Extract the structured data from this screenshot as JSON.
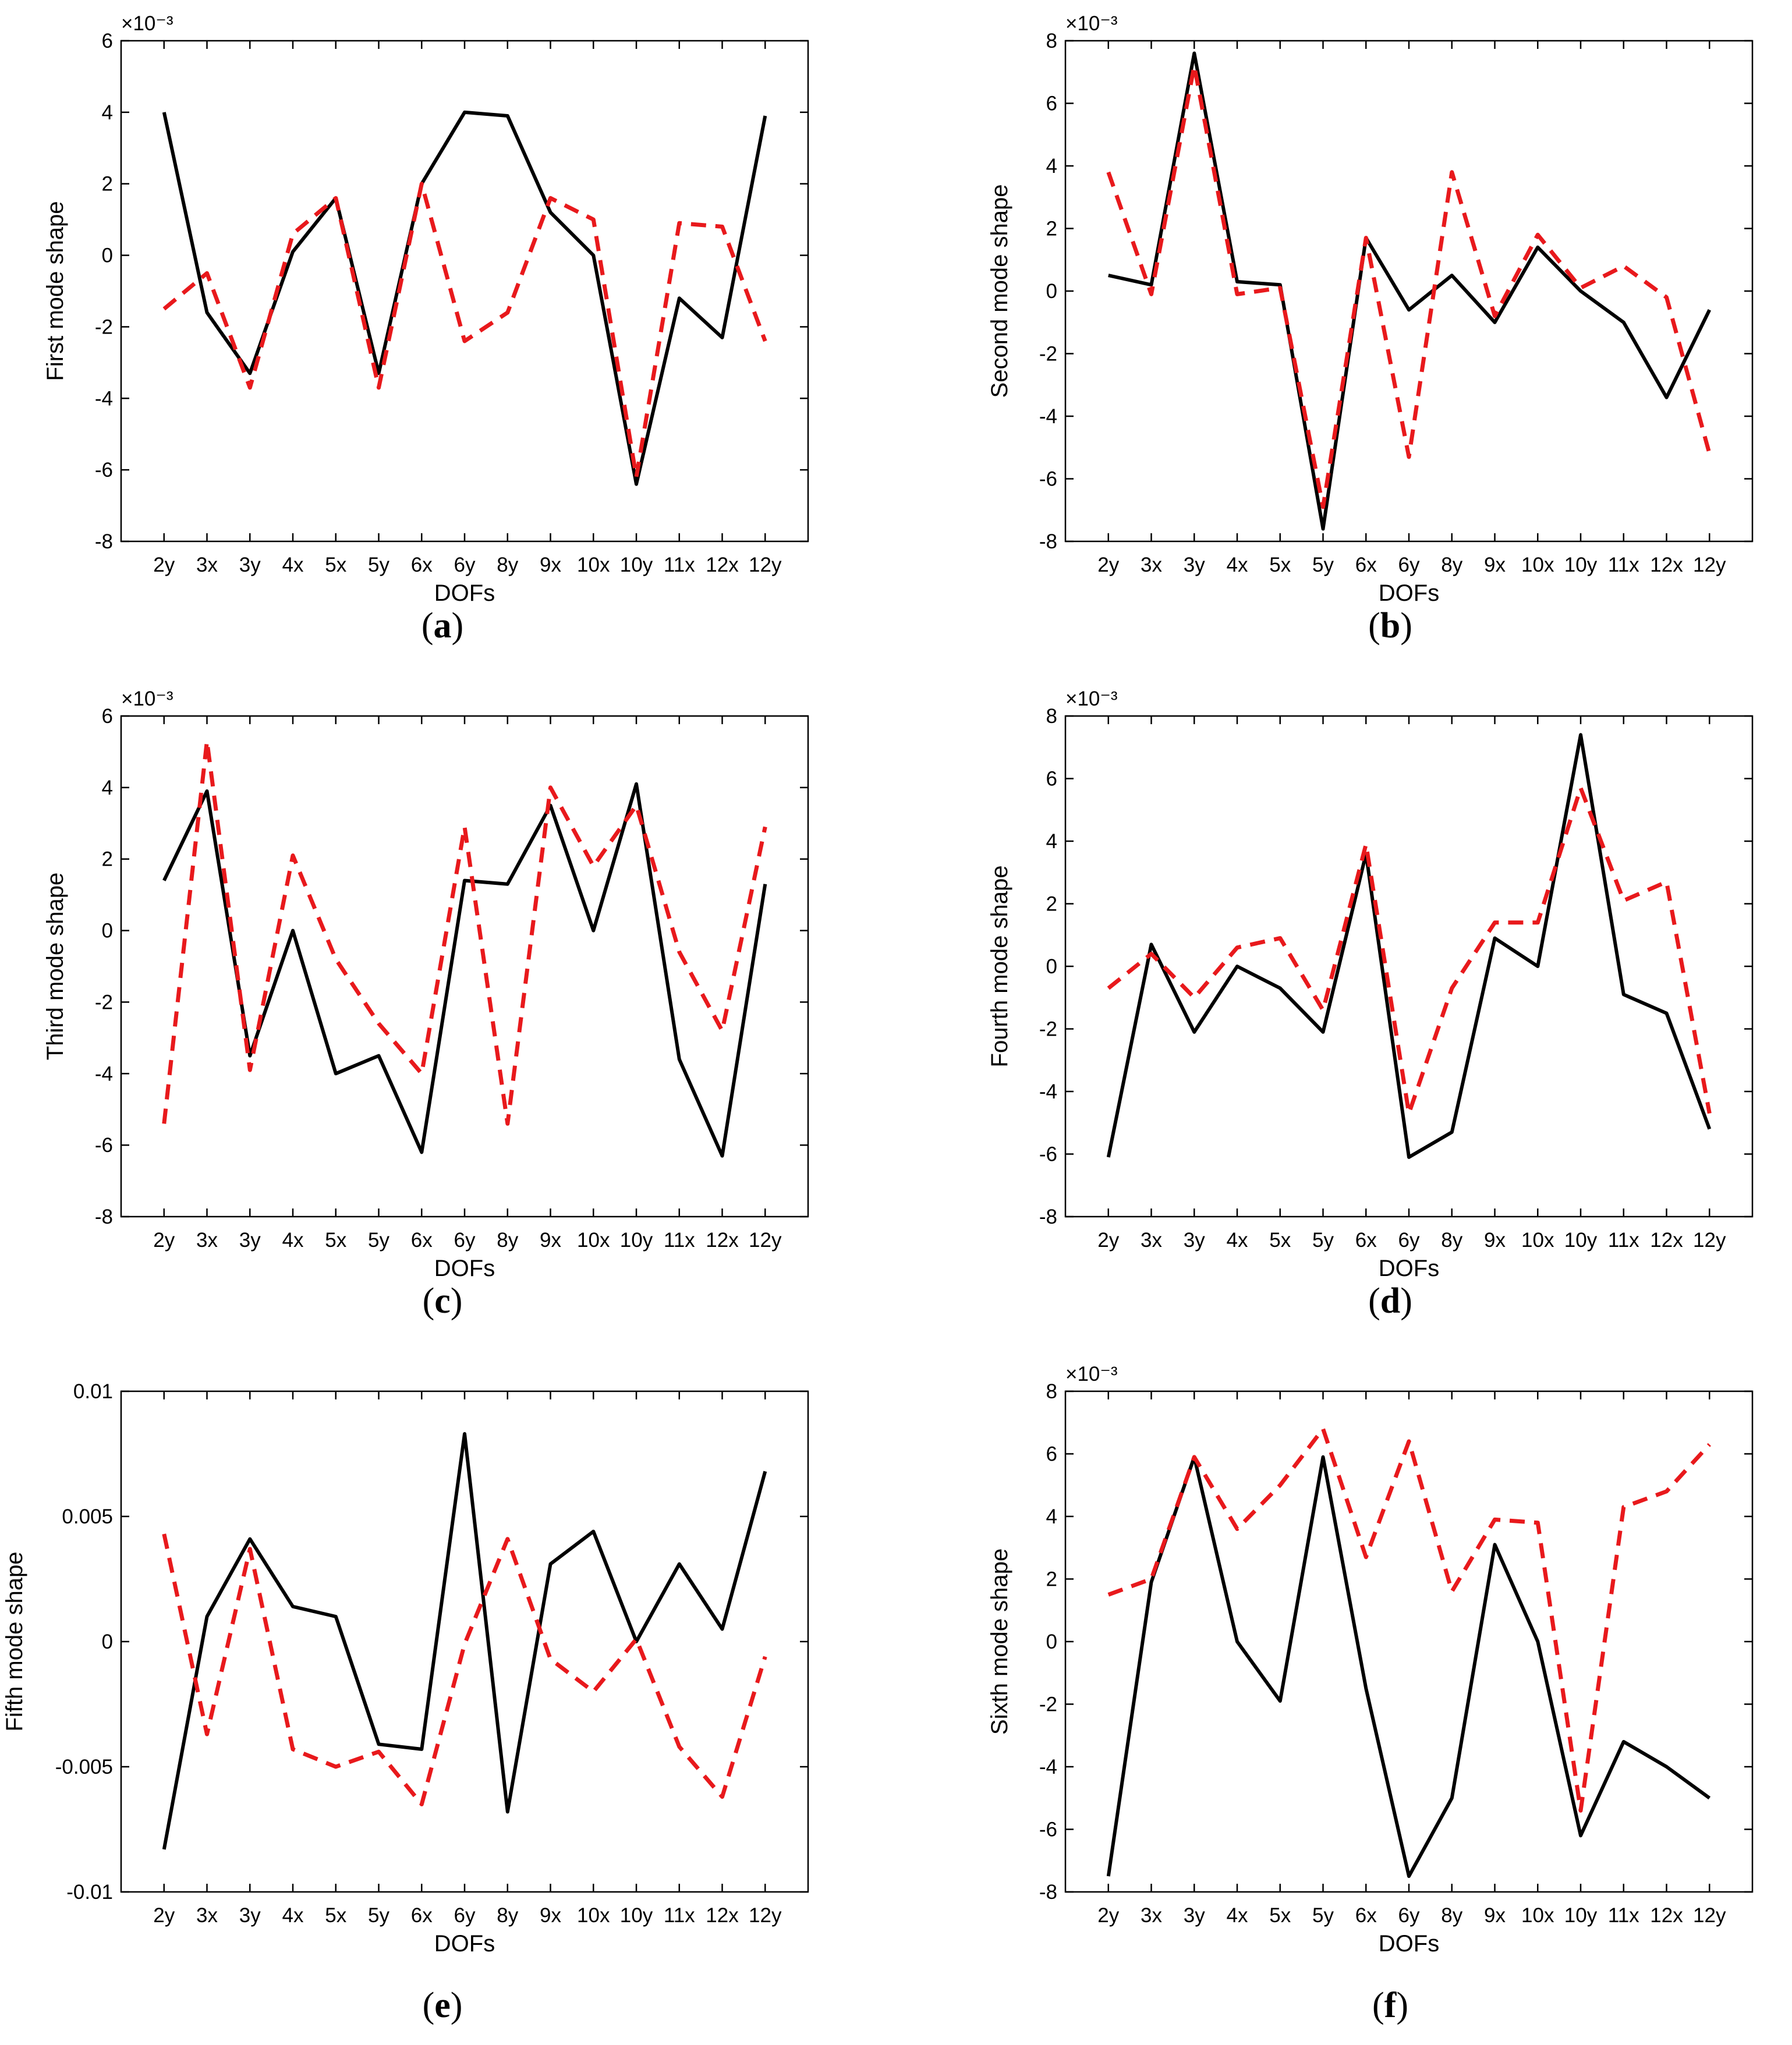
{
  "chart_data": [
    {
      "panel": "a",
      "type": "line",
      "ylabel": "First mode shape",
      "xlabel": "DOFs",
      "exponent_label": "×10⁻³",
      "ylim": [
        -8,
        6
      ],
      "yticks": [
        -8,
        -6,
        -4,
        -2,
        0,
        2,
        4,
        6
      ],
      "ytick_labels": [
        "-8",
        "-6",
        "-4",
        "-2",
        "0",
        "2",
        "4",
        "6"
      ],
      "categories": [
        "2y",
        "3x",
        "3y",
        "4x",
        "5x",
        "5y",
        "6x",
        "6y",
        "8y",
        "9x",
        "10x",
        "10y",
        "11x",
        "12x",
        "12y"
      ],
      "series": [
        {
          "name": "solid",
          "color": "#000000",
          "dashed": false,
          "values": [
            4.0,
            -1.6,
            -3.3,
            0.1,
            1.6,
            -3.3,
            2.0,
            4.0,
            3.9,
            1.2,
            0.0,
            -6.4,
            -1.2,
            -2.3,
            3.9
          ]
        },
        {
          "name": "dashed",
          "color": "#e8191c",
          "dashed": true,
          "values": [
            -1.5,
            -0.5,
            -3.7,
            0.6,
            1.6,
            -3.7,
            2.0,
            -2.4,
            -1.6,
            1.6,
            1.0,
            -6.2,
            0.9,
            0.8,
            -2.4
          ]
        }
      ],
      "caption_letter": "a"
    },
    {
      "panel": "b",
      "type": "line",
      "ylabel": "Second mode shape",
      "xlabel": "DOFs",
      "exponent_label": "×10⁻³",
      "ylim": [
        -8,
        8
      ],
      "yticks": [
        -8,
        -6,
        -4,
        -2,
        0,
        2,
        4,
        6,
        8
      ],
      "ytick_labels": [
        "-8",
        "-6",
        "-4",
        "-2",
        "0",
        "2",
        "4",
        "6",
        "8"
      ],
      "categories": [
        "2y",
        "3x",
        "3y",
        "4x",
        "5x",
        "5y",
        "6x",
        "6y",
        "8y",
        "9x",
        "10x",
        "10y",
        "11x",
        "12x",
        "12y"
      ],
      "series": [
        {
          "name": "solid",
          "color": "#000000",
          "dashed": false,
          "values": [
            0.5,
            0.2,
            7.6,
            0.3,
            0.2,
            -7.6,
            1.7,
            -0.6,
            0.5,
            -1.0,
            1.4,
            0.0,
            -1.0,
            -3.4,
            -0.6
          ]
        },
        {
          "name": "dashed",
          "color": "#e8191c",
          "dashed": true,
          "values": [
            3.8,
            -0.1,
            7.2,
            -0.1,
            0.1,
            -6.9,
            1.7,
            -5.3,
            3.8,
            -0.8,
            1.8,
            0.1,
            0.8,
            -0.2,
            -5.2
          ]
        }
      ],
      "caption_letter": "b"
    },
    {
      "panel": "c",
      "type": "line",
      "ylabel": "Third mode shape",
      "xlabel": "DOFs",
      "exponent_label": "×10⁻³",
      "ylim": [
        -8,
        6
      ],
      "yticks": [
        -8,
        -6,
        -4,
        -2,
        0,
        2,
        4,
        6
      ],
      "ytick_labels": [
        "-8",
        "-6",
        "-4",
        "-2",
        "0",
        "2",
        "4",
        "6"
      ],
      "categories": [
        "2y",
        "3x",
        "3y",
        "4x",
        "5x",
        "5y",
        "6x",
        "6y",
        "8y",
        "9x",
        "10x",
        "10y",
        "11x",
        "12x",
        "12y"
      ],
      "series": [
        {
          "name": "solid",
          "color": "#000000",
          "dashed": false,
          "values": [
            1.4,
            3.9,
            -3.5,
            0.0,
            -4.0,
            -3.5,
            -6.2,
            1.4,
            1.3,
            3.5,
            0.0,
            4.1,
            -3.6,
            -6.3,
            1.3
          ]
        },
        {
          "name": "dashed",
          "color": "#e8191c",
          "dashed": true,
          "values": [
            -5.4,
            5.3,
            -3.9,
            2.1,
            -0.8,
            -2.6,
            -4.0,
            2.9,
            -5.4,
            4.0,
            1.8,
            3.5,
            -0.6,
            -2.8,
            2.9
          ]
        }
      ],
      "caption_letter": "c"
    },
    {
      "panel": "d",
      "type": "line",
      "ylabel": "Fourth mode shape",
      "xlabel": "DOFs",
      "exponent_label": "×10⁻³",
      "ylim": [
        -8,
        8
      ],
      "yticks": [
        -8,
        -6,
        -4,
        -2,
        0,
        2,
        4,
        6,
        8
      ],
      "ytick_labels": [
        "-8",
        "-6",
        "-4",
        "-2",
        "0",
        "2",
        "4",
        "6",
        "8"
      ],
      "categories": [
        "2y",
        "3x",
        "3y",
        "4x",
        "5x",
        "5y",
        "6x",
        "6y",
        "8y",
        "9x",
        "10x",
        "10y",
        "11x",
        "12x",
        "12y"
      ],
      "series": [
        {
          "name": "solid",
          "color": "#000000",
          "dashed": false,
          "values": [
            -6.1,
            0.7,
            -2.1,
            0.0,
            -0.7,
            -2.1,
            3.6,
            -6.1,
            -5.3,
            0.9,
            0.0,
            7.4,
            -0.9,
            -1.5,
            -5.2
          ]
        },
        {
          "name": "dashed",
          "color": "#e8191c",
          "dashed": true,
          "values": [
            -0.7,
            0.4,
            -1.0,
            0.6,
            0.9,
            -1.4,
            3.9,
            -4.7,
            -0.7,
            1.4,
            1.4,
            5.7,
            2.1,
            2.7,
            -4.7
          ]
        }
      ],
      "caption_letter": "d"
    },
    {
      "panel": "e",
      "type": "line",
      "ylabel": "Fifth mode shape",
      "xlabel": "DOFs",
      "exponent_label": "",
      "ylim": [
        -0.01,
        0.01
      ],
      "yticks": [
        -0.01,
        -0.005,
        0,
        0.005,
        0.01
      ],
      "ytick_labels": [
        "-0.01",
        "-0.005",
        "0",
        "0.005",
        "0.01"
      ],
      "categories": [
        "2y",
        "3x",
        "3y",
        "4x",
        "5x",
        "5y",
        "6x",
        "6y",
        "8y",
        "9x",
        "10x",
        "10y",
        "11x",
        "12x",
        "12y"
      ],
      "series": [
        {
          "name": "solid",
          "color": "#000000",
          "dashed": false,
          "values": [
            -0.0083,
            0.001,
            0.0041,
            0.0014,
            0.001,
            -0.0041,
            -0.0043,
            0.0083,
            -0.0068,
            0.0031,
            0.0044,
            0.0,
            0.0031,
            0.0005,
            0.0068
          ]
        },
        {
          "name": "dashed",
          "color": "#e8191c",
          "dashed": true,
          "values": [
            0.0043,
            -0.0037,
            0.0037,
            -0.0043,
            -0.005,
            -0.0044,
            -0.0065,
            -0.0001,
            0.0041,
            -0.0007,
            -0.002,
            0.0001,
            -0.0042,
            -0.0062,
            -0.0006
          ]
        }
      ],
      "caption_letter": "e"
    },
    {
      "panel": "f",
      "type": "line",
      "ylabel": "Sixth mode shape",
      "xlabel": "DOFs",
      "exponent_label": "×10⁻³",
      "ylim": [
        -8,
        8
      ],
      "yticks": [
        -8,
        -6,
        -4,
        -2,
        0,
        2,
        4,
        6,
        8
      ],
      "ytick_labels": [
        "-8",
        "-6",
        "-4",
        "-2",
        "0",
        "2",
        "4",
        "6",
        "8"
      ],
      "categories": [
        "2y",
        "3x",
        "3y",
        "4x",
        "5x",
        "5y",
        "6x",
        "6y",
        "8y",
        "9x",
        "10x",
        "10y",
        "11x",
        "12x",
        "12y"
      ],
      "series": [
        {
          "name": "solid",
          "color": "#000000",
          "dashed": false,
          "values": [
            -7.5,
            1.9,
            5.9,
            0.0,
            -1.9,
            5.9,
            -1.5,
            -7.5,
            -5.0,
            3.1,
            0.0,
            -6.2,
            -3.2,
            -4.0,
            -5.0
          ]
        },
        {
          "name": "dashed",
          "color": "#e8191c",
          "dashed": true,
          "values": [
            1.5,
            2.0,
            5.9,
            3.6,
            5.0,
            6.8,
            2.7,
            6.4,
            1.6,
            3.9,
            3.8,
            -5.4,
            4.3,
            4.8,
            6.3
          ]
        }
      ],
      "caption_letter": "f"
    }
  ]
}
